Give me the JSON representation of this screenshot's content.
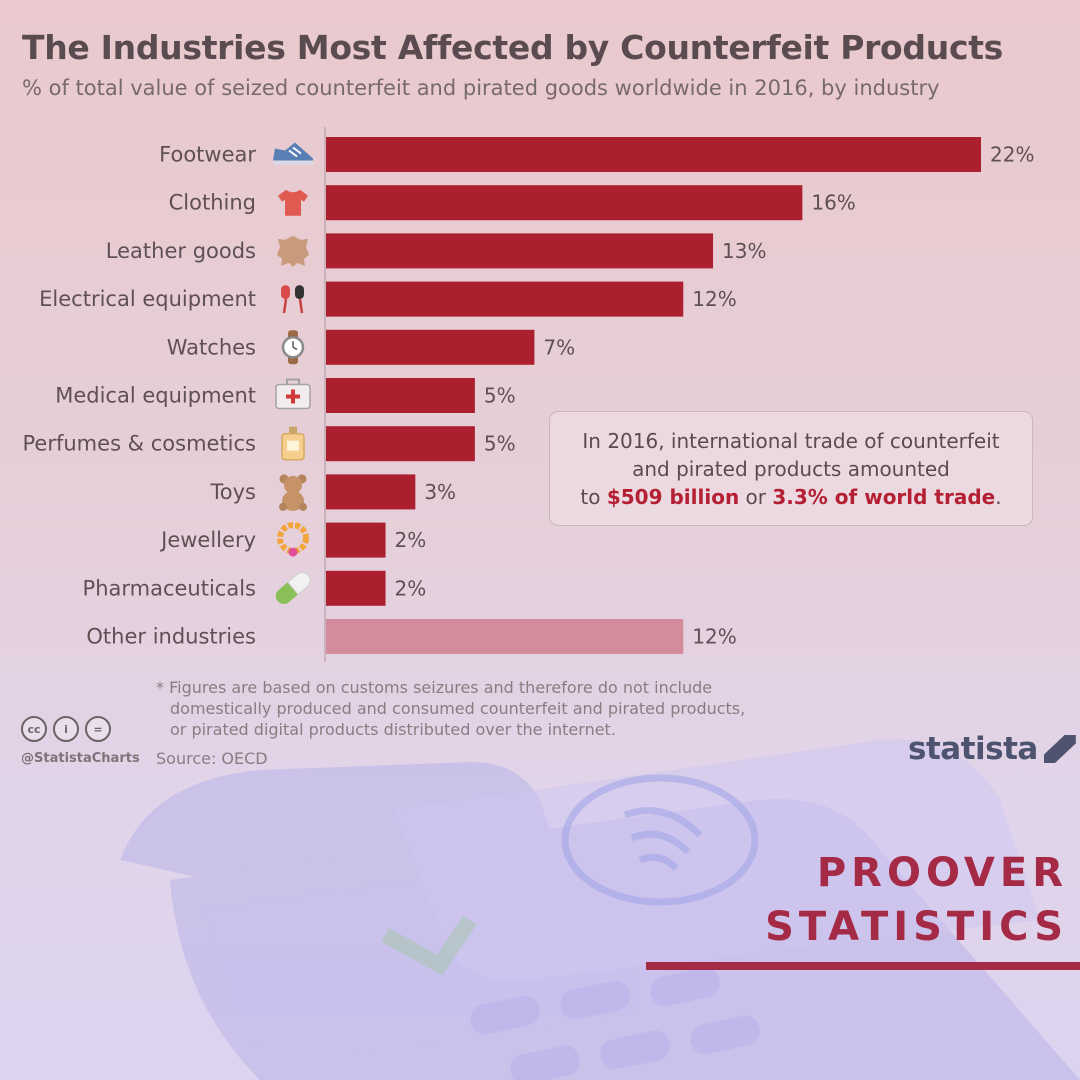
{
  "header": {
    "title": "The Industries Most Affected by Counterfeit Products",
    "subtitle": "% of total value of seized counterfeit and pirated goods worldwide in 2016, by industry"
  },
  "chart_data": {
    "type": "bar",
    "orientation": "horizontal",
    "title": "The Industries Most Affected by Counterfeit Products",
    "subtitle": "% of total value of seized counterfeit and pirated goods worldwide in 2016, by industry",
    "categories": [
      "Footwear",
      "Clothing",
      "Leather goods",
      "Electrical equipment",
      "Watches",
      "Medical equipment",
      "Perfumes & cosmetics",
      "Toys",
      "Jewellery",
      "Pharmaceuticals",
      "Other industries"
    ],
    "values": [
      22,
      16,
      13,
      12,
      7,
      5,
      5,
      3,
      2,
      2,
      12
    ],
    "value_labels": [
      "22%",
      "16%",
      "13%",
      "12%",
      "7%",
      "5%",
      "5%",
      "3%",
      "2%",
      "2%",
      "12%"
    ],
    "icons": [
      "sneaker-icon",
      "shirt-icon",
      "leather-hide-icon",
      "earbuds-icon",
      "watch-icon",
      "medical-kit-icon",
      "perfume-icon",
      "teddy-bear-icon",
      "necklace-icon",
      "pill-icon",
      ""
    ],
    "xlim": [
      0,
      22
    ],
    "unit": "%",
    "colors": {
      "bar": "#ab1f2e",
      "other": "#d48b9c",
      "label": "#5e5054"
    }
  },
  "callout": {
    "line1": "In 2016, international trade of counterfeit",
    "line2": "and pirated products amounted",
    "line3_prefix": "to",
    "line3_highlight1": "$509 billion",
    "line3_mid": "or",
    "line3_highlight2": "3.3% of world trade",
    "line3_suffix": "."
  },
  "footnote": {
    "line1": "* Figures are based on customs seizures and therefore do not include",
    "line2": "domestically produced and consumed counterfeit and pirated products,",
    "line3": "or pirated digital products distributed over the internet."
  },
  "footer": {
    "license_icons": [
      "cc",
      "i",
      "="
    ],
    "handle": "@StatistaCharts",
    "source": "Source: OECD",
    "brand": "statista"
  },
  "watermark": {
    "line1": "PROOVER",
    "line2": "STATISTICS"
  }
}
